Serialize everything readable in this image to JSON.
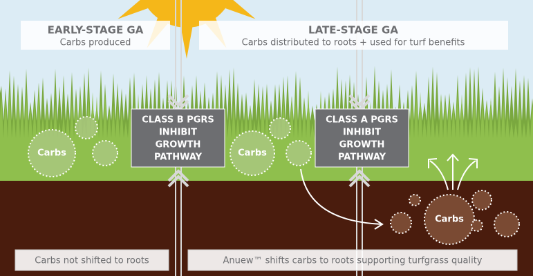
{
  "panels": [
    {
      "header": {
        "title": "EARLY-STAGE GA",
        "subtitle": "Carbs produced"
      },
      "box": [
        "CLASS B PGRS",
        "INHIBIT",
        "GROWTH",
        "PATHWAY"
      ],
      "carbs_label": "Carbs",
      "footer": "Carbs not shifted to roots"
    },
    {
      "header": {
        "title": "LATE-STAGE GA",
        "subtitle": "Carbs distributed to roots + used for turf benefits"
      },
      "box": [
        "CLASS A PGRS",
        "INHIBIT",
        "GROWTH",
        "PATHWAY"
      ],
      "carbs_label": "Carbs",
      "root_carbs_label": "Carbs",
      "footer": "Anuew™ shifts carbs to roots supporting turfgrass quality"
    }
  ]
}
